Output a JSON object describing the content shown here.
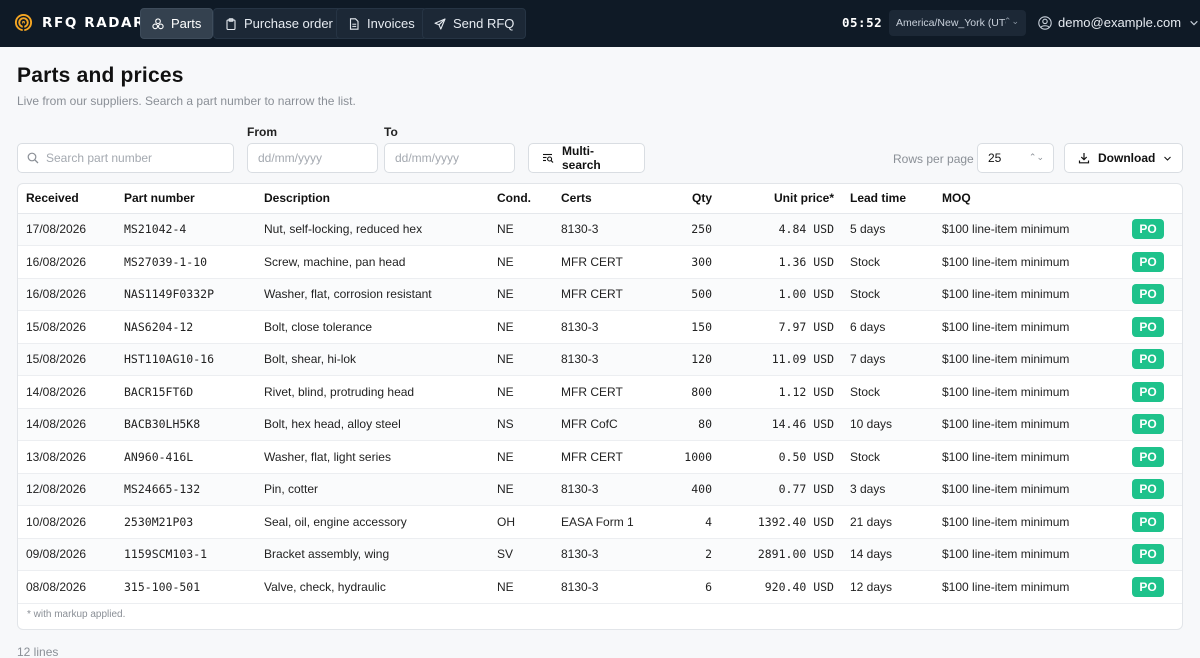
{
  "brand": {
    "name": "RFQ RADAR",
    "icon": "radar-icon"
  },
  "nav": {
    "tabs": [
      {
        "label": "Parts",
        "icon": "parts-icon",
        "active": true
      },
      {
        "label": "Purchase order",
        "icon": "clipboard-icon",
        "active": false
      },
      {
        "label": "Invoices",
        "icon": "document-icon",
        "active": false
      },
      {
        "label": "Send RFQ",
        "icon": "send-icon",
        "active": false
      }
    ],
    "clock": "05:52",
    "timezone": "America/New_York (UTC",
    "user": "demo@example.com"
  },
  "page": {
    "title": "Parts and prices",
    "subtitle": "Live from our suppliers. Search a part number to narrow the list."
  },
  "filters": {
    "search_placeholder": "Search part number",
    "from_label": "From",
    "to_label": "To",
    "date_placeholder": "dd/mm/yyyy",
    "multisearch_label": "Multi-search",
    "rows_per_page_label": "Rows per page",
    "rows_per_page_value": "25",
    "download_label": "Download"
  },
  "table": {
    "columns": [
      "Received",
      "Part number",
      "Description",
      "Cond.",
      "Certs",
      "Qty",
      "Unit price*",
      "Lead time",
      "MOQ",
      ""
    ],
    "rows": [
      {
        "received": "17/08/2026",
        "part": "MS21042-4",
        "desc": "Nut, self-locking, reduced hex",
        "cond": "NE",
        "certs": "8130-3",
        "qty": "250",
        "price": "4.84 USD",
        "lead": "5 days",
        "moq": "$100 line-item minimum",
        "action": "PO"
      },
      {
        "received": "16/08/2026",
        "part": "MS27039-1-10",
        "desc": "Screw, machine, pan head",
        "cond": "NE",
        "certs": "MFR CERT",
        "qty": "300",
        "price": "1.36 USD",
        "lead": "Stock",
        "moq": "$100 line-item minimum",
        "action": "PO"
      },
      {
        "received": "16/08/2026",
        "part": "NAS1149F0332P",
        "desc": "Washer, flat, corrosion resistant",
        "cond": "NE",
        "certs": "MFR CERT",
        "qty": "500",
        "price": "1.00 USD",
        "lead": "Stock",
        "moq": "$100 line-item minimum",
        "action": "PO"
      },
      {
        "received": "15/08/2026",
        "part": "NAS6204-12",
        "desc": "Bolt, close tolerance",
        "cond": "NE",
        "certs": "8130-3",
        "qty": "150",
        "price": "7.97 USD",
        "lead": "6 days",
        "moq": "$100 line-item minimum",
        "action": "PO"
      },
      {
        "received": "15/08/2026",
        "part": "HST110AG10-16",
        "desc": "Bolt, shear, hi-lok",
        "cond": "NE",
        "certs": "8130-3",
        "qty": "120",
        "price": "11.09 USD",
        "lead": "7 days",
        "moq": "$100 line-item minimum",
        "action": "PO"
      },
      {
        "received": "14/08/2026",
        "part": "BACR15FT6D",
        "desc": "Rivet, blind, protruding head",
        "cond": "NE",
        "certs": "MFR CERT",
        "qty": "800",
        "price": "1.12 USD",
        "lead": "Stock",
        "moq": "$100 line-item minimum",
        "action": "PO"
      },
      {
        "received": "14/08/2026",
        "part": "BACB30LH5K8",
        "desc": "Bolt, hex head, alloy steel",
        "cond": "NS",
        "certs": "MFR CofC",
        "qty": "80",
        "price": "14.46 USD",
        "lead": "10 days",
        "moq": "$100 line-item minimum",
        "action": "PO"
      },
      {
        "received": "13/08/2026",
        "part": "AN960-416L",
        "desc": "Washer, flat, light series",
        "cond": "NE",
        "certs": "MFR CERT",
        "qty": "1000",
        "price": "0.50 USD",
        "lead": "Stock",
        "moq": "$100 line-item minimum",
        "action": "PO"
      },
      {
        "received": "12/08/2026",
        "part": "MS24665-132",
        "desc": "Pin, cotter",
        "cond": "NE",
        "certs": "8130-3",
        "qty": "400",
        "price": "0.77 USD",
        "lead": "3 days",
        "moq": "$100 line-item minimum",
        "action": "PO"
      },
      {
        "received": "10/08/2026",
        "part": "2530M21P03",
        "desc": "Seal, oil, engine accessory",
        "cond": "OH",
        "certs": "EASA Form 1",
        "qty": "4",
        "price": "1392.40 USD",
        "lead": "21 days",
        "moq": "$100 line-item minimum",
        "action": "PO"
      },
      {
        "received": "09/08/2026",
        "part": "1159SCM103-1",
        "desc": "Bracket assembly, wing",
        "cond": "SV",
        "certs": "8130-3",
        "qty": "2",
        "price": "2891.00 USD",
        "lead": "14 days",
        "moq": "$100 line-item minimum",
        "action": "PO"
      },
      {
        "received": "08/08/2026",
        "part": "315-100-501",
        "desc": "Valve, check, hydraulic",
        "cond": "NE",
        "certs": "8130-3",
        "qty": "6",
        "price": "920.40 USD",
        "lead": "12 days",
        "moq": "$100 line-item minimum",
        "action": "PO"
      }
    ],
    "footnote": "* with markup applied.",
    "count": "12 lines"
  },
  "colors": {
    "nav_bg": "#0f1a26",
    "accent": "#1ec28b",
    "brand_icon": "#f5a623"
  }
}
